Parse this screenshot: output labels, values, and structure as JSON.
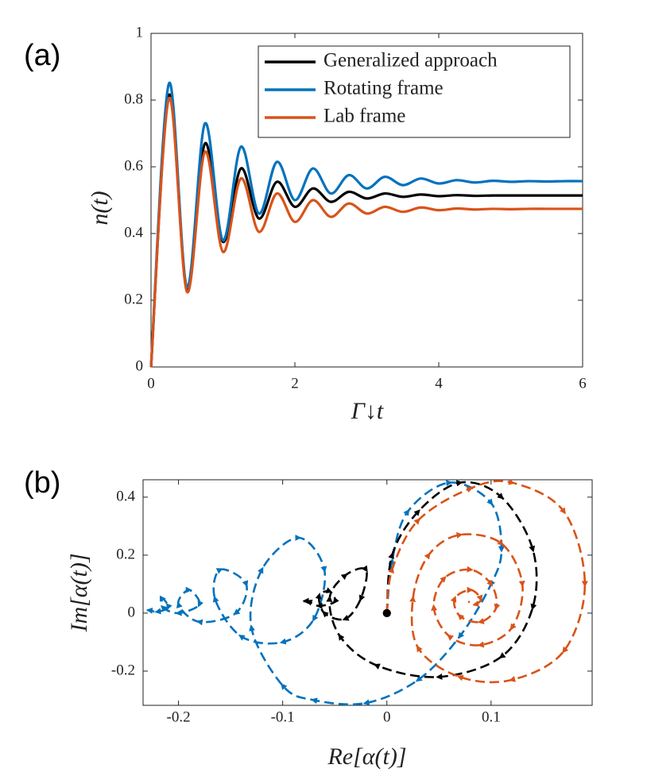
{
  "chart_data": [
    {
      "type": "line",
      "panel_label": "(a)",
      "x_label": "Γ↓t",
      "y_label": "n(t)",
      "xlim": [
        0,
        6
      ],
      "ylim": [
        0,
        1
      ],
      "xticks": [
        0,
        2,
        4,
        6
      ],
      "yticks": [
        0,
        0.2,
        0.4,
        0.6,
        0.8,
        1
      ],
      "legend": "top-right",
      "x": [
        0,
        0.25,
        0.5,
        0.75,
        1.0,
        1.25,
        1.5,
        1.75,
        2.0,
        2.25,
        2.5,
        2.75,
        3.0,
        3.25,
        3.5,
        3.75,
        4.0,
        4.25,
        4.5,
        4.75,
        5.0,
        5.25,
        5.5,
        5.75,
        6.0
      ],
      "series": [
        {
          "name": "Generalized approach",
          "color": "#000000",
          "values": [
            0,
            0.815,
            0.235,
            0.67,
            0.375,
            0.595,
            0.445,
            0.555,
            0.48,
            0.535,
            0.495,
            0.525,
            0.505,
            0.52,
            0.51,
            0.517,
            0.512,
            0.515,
            0.513,
            0.514,
            0.514,
            0.514,
            0.514,
            0.514,
            0.514
          ]
        },
        {
          "name": "Rotating frame",
          "color": "#0072bd",
          "values": [
            0,
            0.85,
            0.24,
            0.73,
            0.38,
            0.66,
            0.46,
            0.615,
            0.5,
            0.595,
            0.52,
            0.575,
            0.535,
            0.57,
            0.545,
            0.565,
            0.55,
            0.56,
            0.553,
            0.558,
            0.555,
            0.557,
            0.556,
            0.557,
            0.557
          ]
        },
        {
          "name": "Lab frame",
          "color": "#d95319",
          "values": [
            0,
            0.805,
            0.225,
            0.645,
            0.345,
            0.565,
            0.405,
            0.52,
            0.435,
            0.5,
            0.45,
            0.49,
            0.46,
            0.48,
            0.465,
            0.478,
            0.47,
            0.475,
            0.472,
            0.474,
            0.473,
            0.474,
            0.474,
            0.474,
            0.474
          ]
        }
      ]
    },
    {
      "type": "line",
      "panel_label": "(b)",
      "x_label": "Re[α(t)]",
      "y_label": "Im[α(t)]",
      "xlim": [
        -0.234,
        0.197
      ],
      "ylim": [
        -0.318,
        0.46
      ],
      "xticks": [
        -0.2,
        -0.1,
        0,
        0.1
      ],
      "yticks": [
        -0.2,
        0,
        0.2,
        0.4
      ],
      "dashed": true,
      "series": [
        {
          "color": "#0072bd",
          "x": [
            0,
            0.005,
            0.02,
            0.06,
            0.1,
            0.11,
            0.1,
            0.07,
            0.03,
            -0.02,
            -0.07,
            -0.1,
            -0.13,
            -0.12,
            -0.085,
            -0.06,
            -0.07,
            -0.1,
            -0.14,
            -0.165,
            -0.16,
            -0.135,
            -0.145,
            -0.18,
            -0.2,
            -0.19,
            -0.18,
            -0.2,
            -0.215,
            -0.215,
            -0.21,
            -0.22,
            -0.228,
            -0.23
          ],
          "values": [
            0,
            0.18,
            0.35,
            0.45,
            0.38,
            0.22,
            0.1,
            -0.08,
            -0.23,
            -0.31,
            -0.3,
            -0.25,
            -0.05,
            0.15,
            0.26,
            0.15,
            -0.02,
            -0.1,
            -0.08,
            0.05,
            0.15,
            0.1,
            0.0,
            -0.03,
            0.03,
            0.08,
            0.03,
            0.0,
            0.02,
            0.05,
            0.02,
            0.005,
            0.01,
            0.01
          ]
        },
        {
          "color": "#000000",
          "x": [
            0,
            0.005,
            0.03,
            0.07,
            0.11,
            0.14,
            0.14,
            0.11,
            0.05,
            -0.01,
            -0.045,
            -0.055,
            -0.04,
            -0.02,
            -0.025,
            -0.04,
            -0.06,
            -0.065,
            -0.055,
            -0.05,
            -0.065,
            -0.075,
            -0.078,
            -0.08
          ],
          "values": [
            0,
            0.2,
            0.35,
            0.45,
            0.4,
            0.22,
            0.02,
            -0.15,
            -0.22,
            -0.18,
            -0.08,
            0.05,
            0.13,
            0.15,
            0.05,
            -0.02,
            0.0,
            0.06,
            0.075,
            0.04,
            0.025,
            0.04,
            0.042,
            0.04
          ]
        },
        {
          "color": "#d95319",
          "x": [
            0,
            0.005,
            0.03,
            0.08,
            0.12,
            0.17,
            0.19,
            0.17,
            0.12,
            0.07,
            0.03,
            0.025,
            0.04,
            0.07,
            0.11,
            0.13,
            0.12,
            0.09,
            0.06,
            0.045,
            0.055,
            0.08,
            0.1,
            0.105,
            0.09,
            0.07,
            0.065,
            0.08,
            0.09,
            0.085,
            0.078
          ],
          "values": [
            0,
            0.15,
            0.32,
            0.43,
            0.45,
            0.35,
            0.1,
            -0.13,
            -0.23,
            -0.22,
            -0.12,
            0.05,
            0.2,
            0.27,
            0.24,
            0.1,
            -0.05,
            -0.11,
            -0.08,
            0.02,
            0.12,
            0.15,
            0.1,
            0.02,
            -0.03,
            -0.01,
            0.05,
            0.08,
            0.05,
            0.03,
            0.04
          ]
        }
      ]
    }
  ]
}
